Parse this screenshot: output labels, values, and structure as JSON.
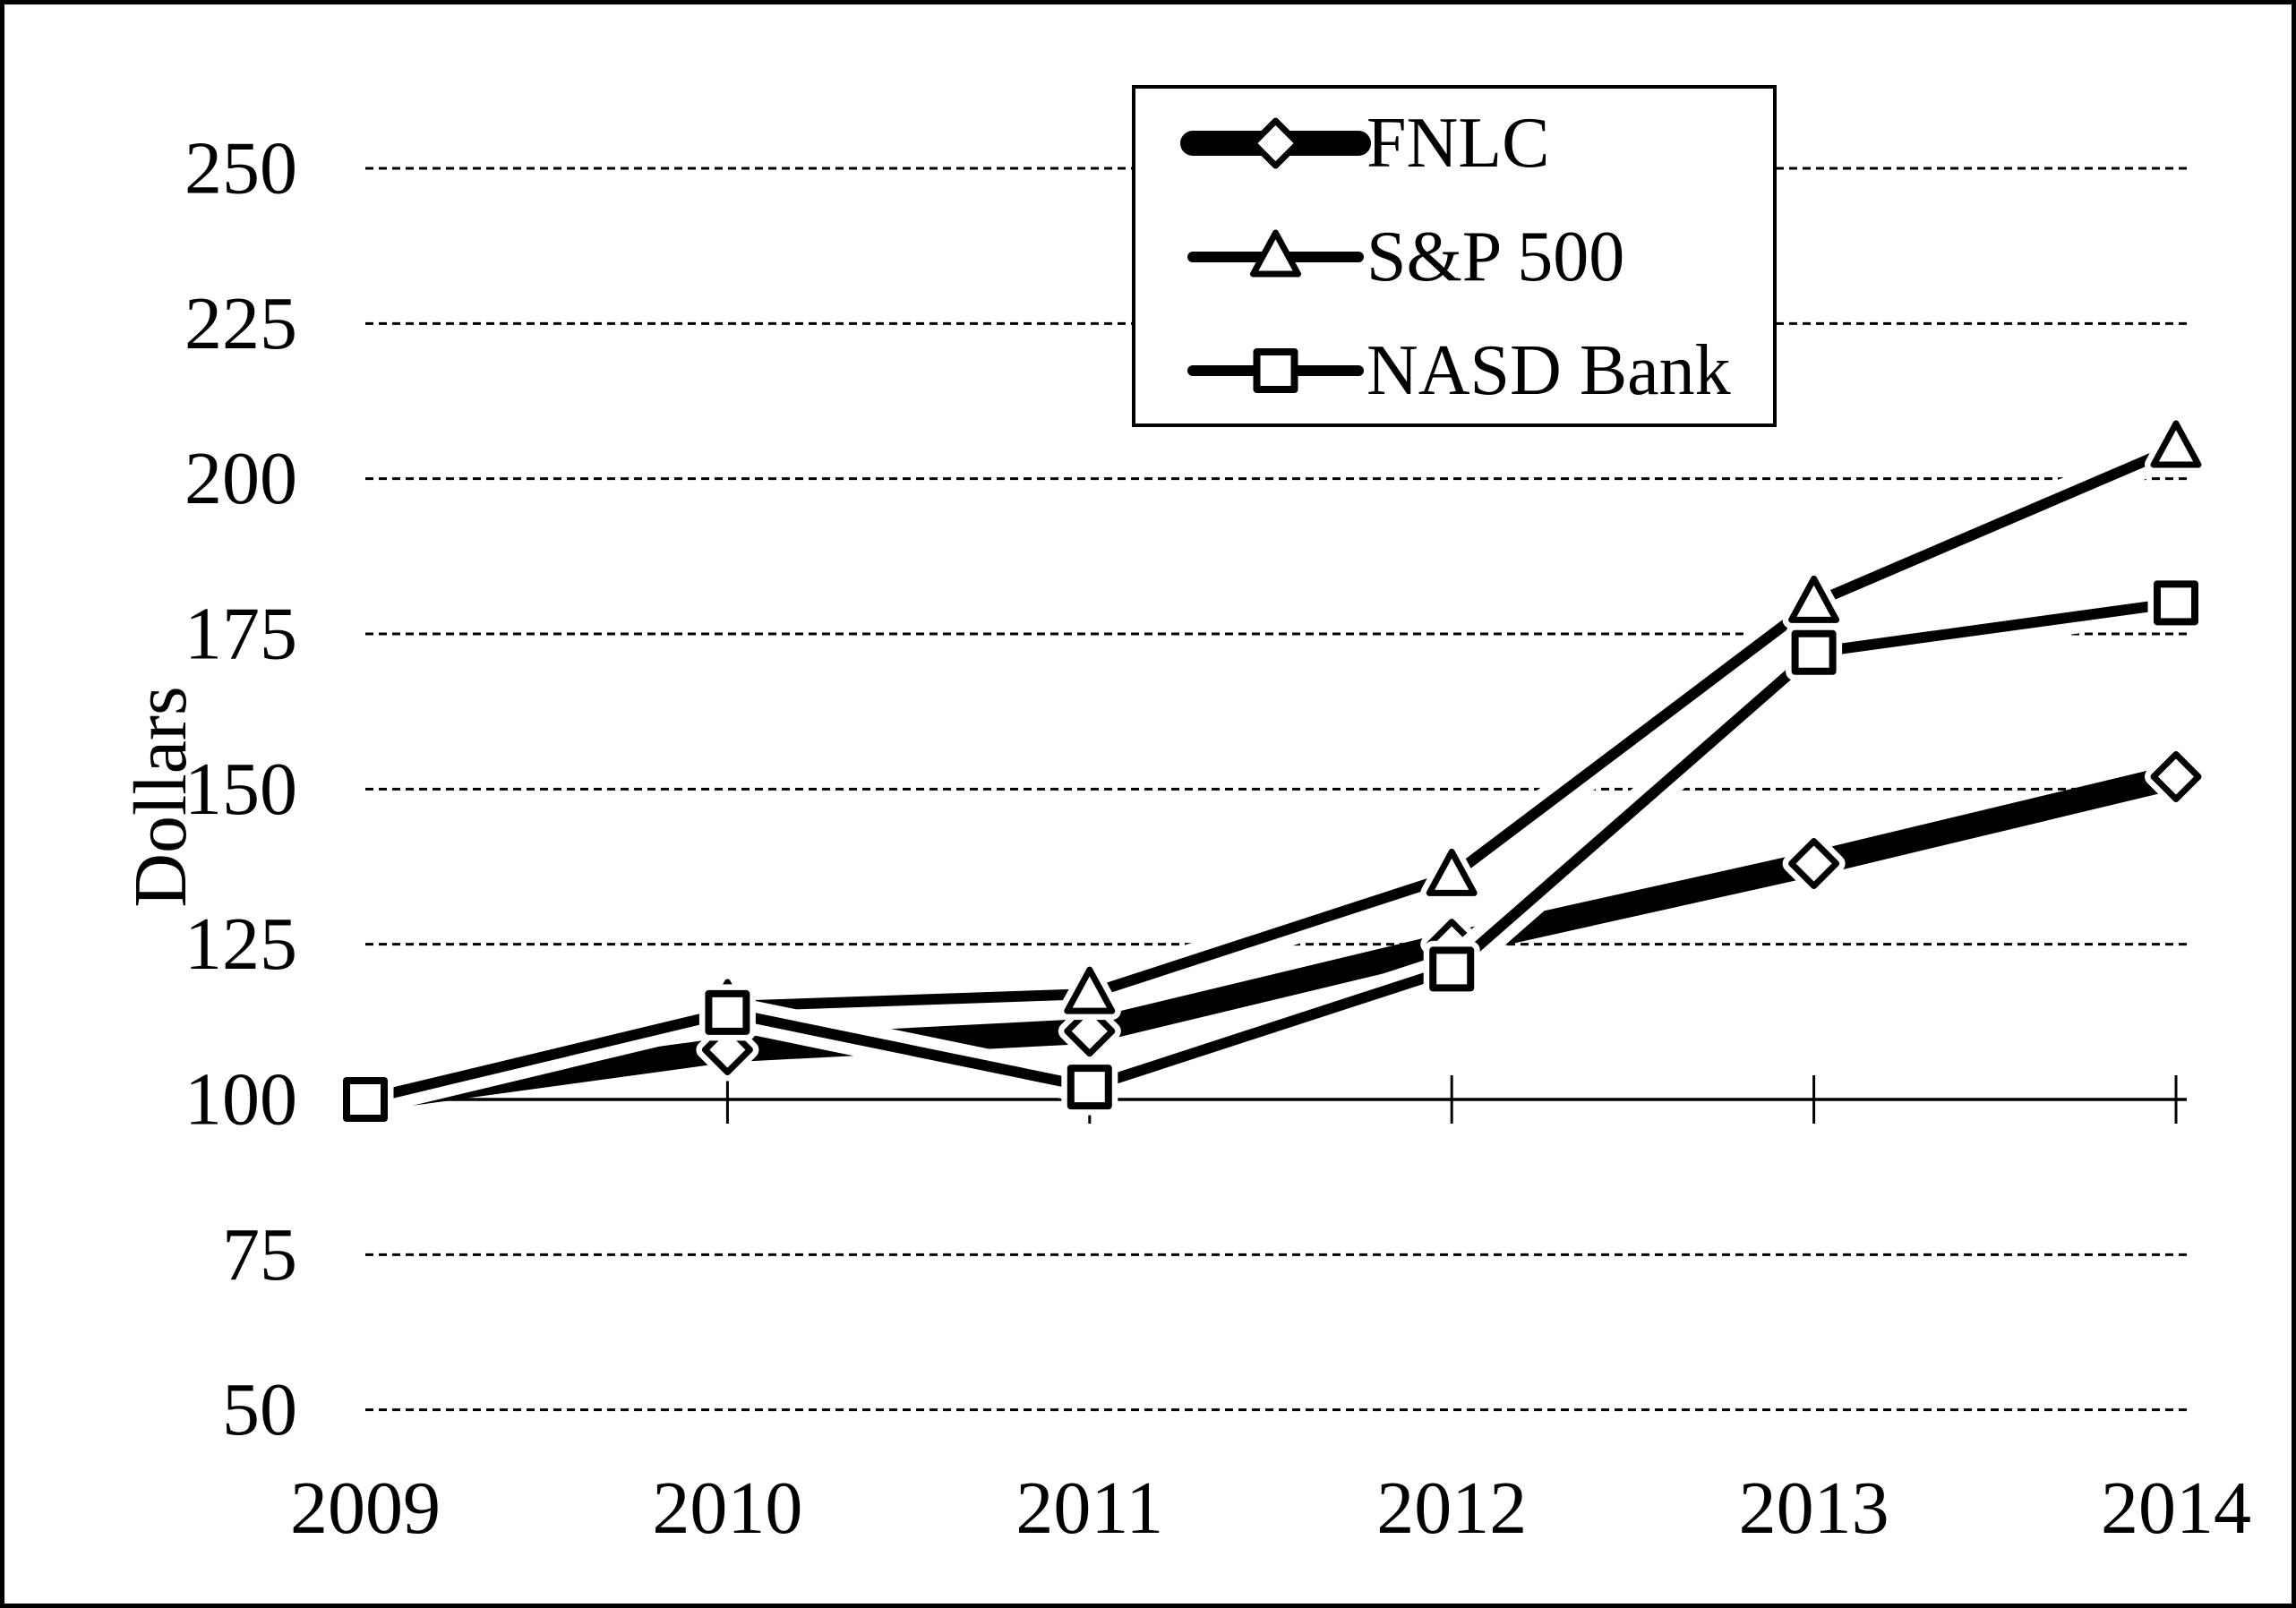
{
  "chart_data": {
    "type": "line",
    "title": "",
    "ylabel": "Dollars",
    "xlabel": "",
    "categories": [
      "2009",
      "2010",
      "2011",
      "2012",
      "2013",
      "2014"
    ],
    "series": [
      {
        "name": "FNLC",
        "marker": "diamond",
        "line_style": "thick",
        "values": [
          100,
          108,
          111,
          125,
          138,
          152
        ]
      },
      {
        "name": "S&P 500",
        "marker": "triangle",
        "line_style": "thin",
        "values": [
          100,
          115,
          117,
          136,
          180,
          205
        ]
      },
      {
        "name": "NASD Bank",
        "marker": "square",
        "line_style": "thin",
        "values": [
          100,
          114,
          102,
          121,
          172,
          180
        ]
      }
    ],
    "ylim": [
      50,
      250
    ],
    "ytick_step": 25,
    "yticks": [
      50,
      75,
      100,
      125,
      150,
      175,
      200,
      225,
      250
    ],
    "baseline_value": 100,
    "grid": "horizontal-dashed",
    "legend_position": "top-center",
    "colors": {
      "foreground": "#000000",
      "background": "#ffffff"
    }
  }
}
